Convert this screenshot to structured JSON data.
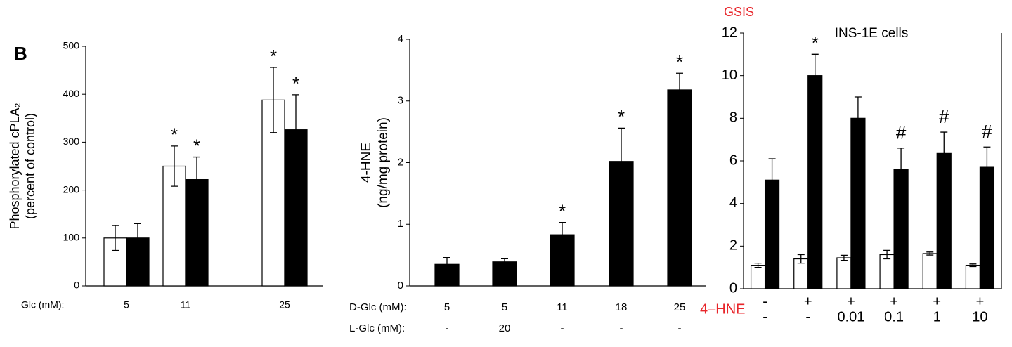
{
  "chart_data": [
    {
      "type": "bar",
      "panel_label": "B",
      "ylabel": [
        "Phosphorylated cPLA₂",
        "(percent of control)"
      ],
      "category_rows": [
        {
          "label": "Glc (mM):",
          "values": [
            "5",
            "11",
            "25"
          ]
        }
      ],
      "ylim": [
        0,
        500
      ],
      "yticks": [
        0,
        100,
        200,
        300,
        400,
        500
      ],
      "series": [
        {
          "color": "#ffffff",
          "values": [
            100,
            250,
            388
          ],
          "errors": [
            26,
            42,
            68
          ],
          "markers": [
            null,
            "*",
            "*"
          ]
        },
        {
          "color": "#000000",
          "values": [
            100,
            222,
            326
          ],
          "errors": [
            30,
            47,
            73
          ],
          "markers": [
            null,
            "*",
            "*"
          ]
        }
      ]
    },
    {
      "type": "bar",
      "ylabel": [
        "4-HNE",
        "(ng/mg protein)"
      ],
      "category_rows": [
        {
          "label": "D-Glc (mM):",
          "values": [
            "5",
            "5",
            "11",
            "18",
            "25"
          ]
        },
        {
          "label": "L-Glc (mM):",
          "values": [
            "-",
            "20",
            "-",
            "-",
            "-"
          ]
        }
      ],
      "ylim": [
        0,
        4
      ],
      "yticks": [
        0,
        1,
        2,
        3,
        4
      ],
      "series": [
        {
          "color": "#000000",
          "values": [
            0.35,
            0.39,
            0.83,
            2.02,
            3.18
          ],
          "errors": [
            0.11,
            0.05,
            0.2,
            0.54,
            0.27
          ],
          "markers": [
            null,
            null,
            "*",
            "*",
            "*"
          ]
        }
      ]
    },
    {
      "type": "bar",
      "annotation": "GSIS",
      "title": "INS-1E cells",
      "category_rows": [
        {
          "label": "4–HNE",
          "values": [
            "-",
            "+",
            "+",
            "+",
            "+",
            "+"
          ]
        },
        {
          "values": [
            "-",
            "-",
            "0.01",
            "0.1",
            "1",
            "10"
          ]
        }
      ],
      "ylim": [
        0,
        12
      ],
      "yticks": [
        0,
        2,
        4,
        6,
        8,
        10,
        12
      ],
      "series": [
        {
          "color": "#ffffff",
          "values": [
            1.1,
            1.4,
            1.45,
            1.6,
            1.65,
            1.1
          ],
          "errors": [
            0.1,
            0.2,
            0.12,
            0.2,
            0.07,
            0.06
          ],
          "markers": [
            null,
            null,
            null,
            null,
            null,
            null
          ]
        },
        {
          "color": "#000000",
          "values": [
            5.1,
            10.0,
            8.0,
            5.6,
            6.35,
            5.7
          ],
          "errors": [
            1.0,
            1.0,
            1.0,
            1.0,
            1.0,
            0.95
          ],
          "markers": [
            null,
            "*",
            null,
            "#",
            "#",
            "#"
          ]
        }
      ]
    }
  ]
}
